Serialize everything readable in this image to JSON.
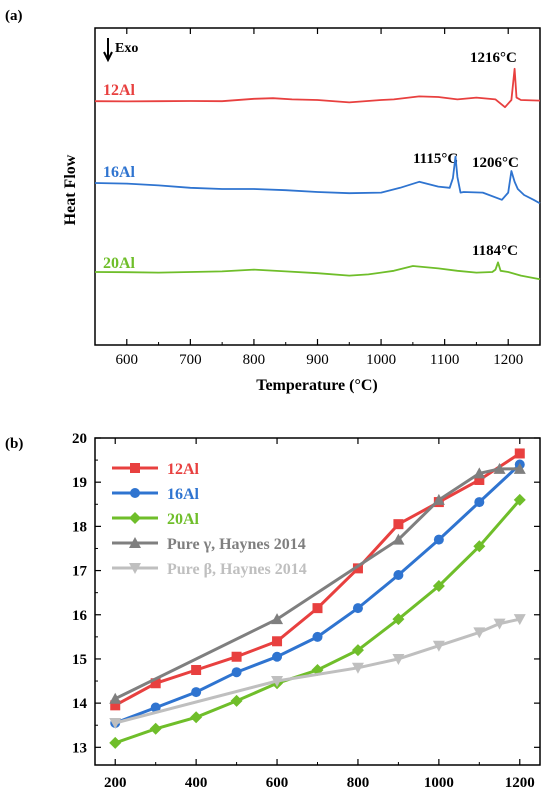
{
  "chart_data": [
    {
      "type": "line",
      "panel_label": "(a)",
      "xlabel": "Temperature (°C)",
      "ylabel": "Heat Flow",
      "xlim": [
        550,
        1250
      ],
      "x_ticks": [
        600,
        700,
        800,
        900,
        1000,
        1100,
        1200
      ],
      "x_tick_labels": [
        "600",
        "700",
        "800",
        "900",
        "1000",
        "1100",
        "1200"
      ],
      "y_ticks_shown": false,
      "exo_label": "Exo",
      "series": [
        {
          "name": "12Al",
          "color": "#e8403f",
          "points": [
            [
              550,
              -0.1
            ],
            [
              600,
              -0.12
            ],
            [
              650,
              -0.1
            ],
            [
              700,
              -0.08
            ],
            [
              750,
              -0.1
            ],
            [
              800,
              0.1
            ],
            [
              830,
              0.15
            ],
            [
              860,
              0.05
            ],
            [
              900,
              0.0
            ],
            [
              950,
              -0.2
            ],
            [
              1000,
              0.0
            ],
            [
              1020,
              0.05
            ],
            [
              1060,
              0.3
            ],
            [
              1090,
              0.25
            ],
            [
              1120,
              0.05
            ],
            [
              1150,
              0.2
            ],
            [
              1180,
              0.05
            ],
            [
              1195,
              -0.6
            ],
            [
              1205,
              0.0
            ],
            [
              1210,
              2.6
            ],
            [
              1213,
              0.2
            ],
            [
              1220,
              0.0
            ],
            [
              1250,
              -0.05
            ]
          ]
        },
        {
          "name": "16Al",
          "color": "#2f74d0",
          "points": [
            [
              550,
              0.0
            ],
            [
              600,
              -0.05
            ],
            [
              650,
              -0.2
            ],
            [
              700,
              -0.4
            ],
            [
              750,
              -0.5
            ],
            [
              800,
              -0.5
            ],
            [
              850,
              -0.6
            ],
            [
              900,
              -0.75
            ],
            [
              950,
              -0.85
            ],
            [
              1000,
              -0.8
            ],
            [
              1030,
              -0.4
            ],
            [
              1060,
              0.1
            ],
            [
              1090,
              -0.3
            ],
            [
              1108,
              -0.4
            ],
            [
              1113,
              0.4
            ],
            [
              1117,
              2.2
            ],
            [
              1120,
              0.5
            ],
            [
              1125,
              -0.8
            ],
            [
              1130,
              -0.75
            ],
            [
              1160,
              -0.8
            ],
            [
              1190,
              -1.4
            ],
            [
              1200,
              -0.8
            ],
            [
              1205,
              1.0
            ],
            [
              1210,
              0.1
            ],
            [
              1215,
              -0.5
            ],
            [
              1225,
              -1.0
            ],
            [
              1240,
              -1.4
            ],
            [
              1250,
              -1.7
            ]
          ]
        },
        {
          "name": "20Al",
          "color": "#6fbe2a",
          "points": [
            [
              550,
              0.0
            ],
            [
              600,
              -0.02
            ],
            [
              650,
              -0.05
            ],
            [
              700,
              0.0
            ],
            [
              750,
              0.05
            ],
            [
              800,
              0.2
            ],
            [
              850,
              0.05
            ],
            [
              900,
              -0.1
            ],
            [
              950,
              -0.3
            ],
            [
              980,
              -0.2
            ],
            [
              1020,
              0.1
            ],
            [
              1050,
              0.5
            ],
            [
              1090,
              0.3
            ],
            [
              1120,
              0.1
            ],
            [
              1150,
              -0.05
            ],
            [
              1175,
              0.0
            ],
            [
              1180,
              0.2
            ],
            [
              1184,
              0.8
            ],
            [
              1188,
              0.1
            ],
            [
              1200,
              0.0
            ],
            [
              1220,
              -0.3
            ],
            [
              1250,
              -0.6
            ]
          ]
        }
      ],
      "annotations": [
        "1216°C",
        "1115°C",
        "1206°C",
        "1184°C"
      ]
    },
    {
      "type": "line",
      "panel_label": "(b)",
      "xlim": [
        150,
        1250
      ],
      "ylim": [
        12.6,
        20.0
      ],
      "x_ticks": [
        200,
        400,
        600,
        800,
        1000,
        1200
      ],
      "x_tick_labels": [
        "200",
        "400",
        "600",
        "800",
        "1000",
        "1200"
      ],
      "y_ticks": [
        13,
        14,
        15,
        16,
        17,
        18,
        19,
        20
      ],
      "y_tick_labels": [
        "13",
        "14",
        "15",
        "16",
        "17",
        "18",
        "19",
        "20"
      ],
      "legend_position": "top-left",
      "x": [
        200,
        300,
        400,
        500,
        600,
        700,
        800,
        900,
        1000,
        1100,
        1200
      ],
      "series": [
        {
          "name": "12Al",
          "color": "#e8403f",
          "marker": "square",
          "values": [
            13.95,
            14.45,
            14.75,
            15.05,
            15.4,
            16.15,
            17.05,
            18.05,
            18.55,
            19.05,
            19.65
          ]
        },
        {
          "name": "16Al",
          "color": "#2f74d0",
          "marker": "circle",
          "values": [
            13.55,
            13.9,
            14.25,
            14.7,
            15.05,
            15.5,
            16.15,
            16.9,
            17.7,
            18.55,
            19.4
          ]
        },
        {
          "name": "20Al",
          "color": "#6fbe2a",
          "marker": "diamond",
          "values": [
            13.1,
            13.42,
            13.68,
            14.05,
            14.45,
            14.75,
            15.2,
            15.9,
            16.65,
            17.55,
            18.6
          ]
        },
        {
          "name": "Pure γ, Haynes 2014",
          "color": "#7f7f7f",
          "marker": "triangle-up",
          "x": [
            200,
            600,
            900,
            1000,
            1100,
            1150,
            1200
          ],
          "values": [
            14.1,
            15.9,
            17.7,
            18.6,
            19.2,
            19.3,
            19.3
          ]
        },
        {
          "name": "Pure β, Haynes 2014",
          "color": "#bfbfbf",
          "marker": "triangle-down",
          "x": [
            200,
            600,
            800,
            900,
            1000,
            1100,
            1150,
            1200
          ],
          "values": [
            13.55,
            14.5,
            14.8,
            15.0,
            15.3,
            15.6,
            15.8,
            15.9
          ]
        }
      ]
    }
  ]
}
